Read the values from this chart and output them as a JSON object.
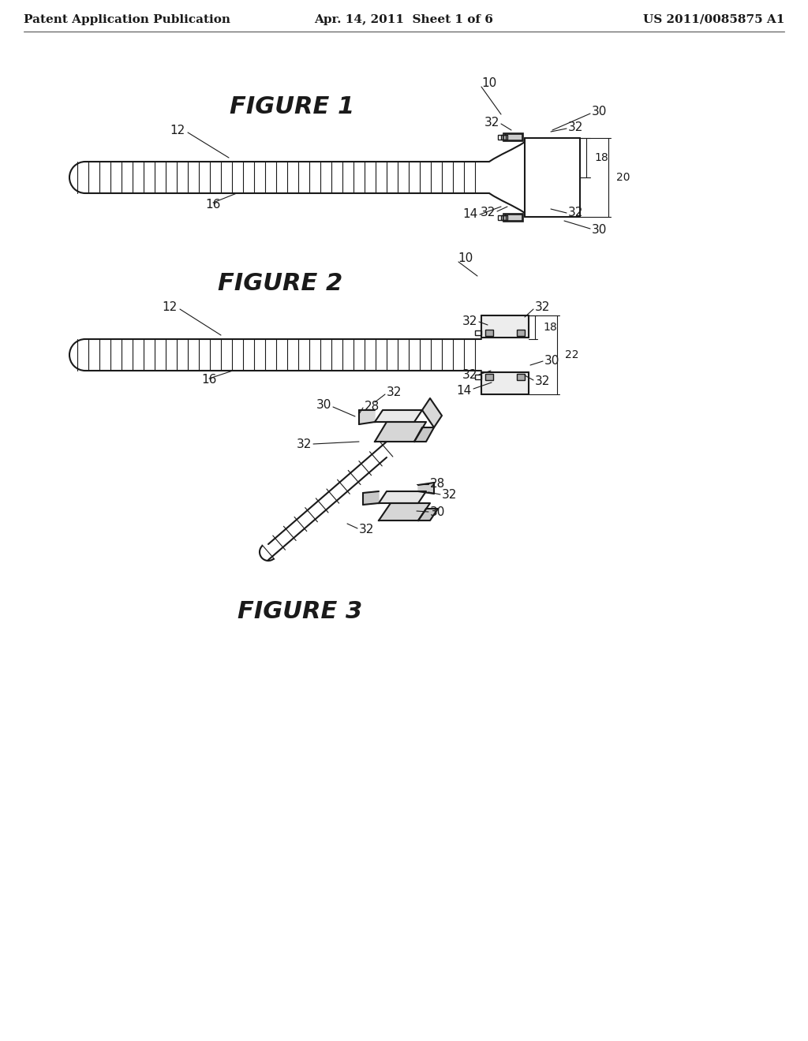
{
  "bg_color": "#ffffff",
  "text_color": "#000000",
  "line_color": "#1a1a1a",
  "header_left": "Patent Application Publication",
  "header_center": "Apr. 14, 2011  Sheet 1 of 6",
  "header_right": "US 2011/0085875 A1",
  "fig1_title": "FIGURE 1",
  "fig2_title": "FIGURE 2",
  "fig3_title": "FIGURE 3",
  "fig_title_fontsize": 22,
  "header_fontsize": 11,
  "label_fontsize": 11
}
